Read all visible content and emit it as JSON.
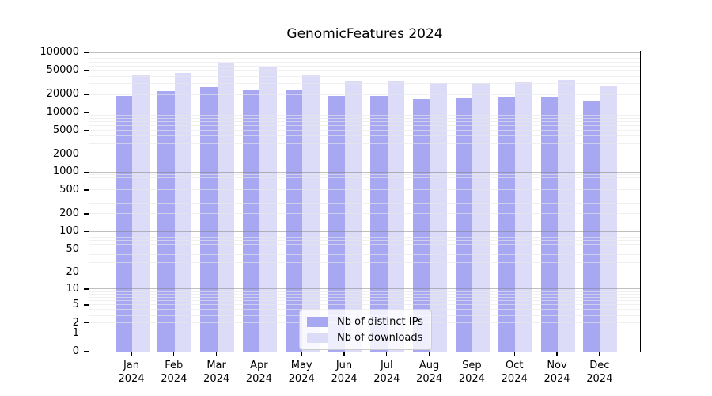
{
  "title": "GenomicFeatures 2024",
  "chart_data": {
    "type": "bar",
    "title": "GenomicFeatures 2024",
    "categories": [
      "Jan 2024",
      "Feb 2024",
      "Mar 2024",
      "Apr 2024",
      "May 2024",
      "Jun 2024",
      "Jul 2024",
      "Aug 2024",
      "Sep 2024",
      "Oct 2024",
      "Nov 2024",
      "Dec 2024"
    ],
    "series": [
      {
        "name": "Nb of distinct IPs",
        "color": "#a8a8f2",
        "values": [
          19000,
          23000,
          27000,
          24000,
          23500,
          19000,
          19000,
          17000,
          17500,
          18000,
          18000,
          16000
        ]
      },
      {
        "name": "Nb of downloads",
        "color": "#dcdcf8",
        "values": [
          42000,
          46000,
          67000,
          58000,
          43000,
          34000,
          34000,
          31000,
          31000,
          33000,
          35000,
          27500
        ]
      }
    ],
    "xlabel": "",
    "ylabel": "",
    "yscale": "log1p",
    "ylim": [
      0,
      100000
    ],
    "y_tick_values": [
      100000,
      50000,
      20000,
      10000,
      5000,
      2000,
      1000,
      500,
      200,
      100,
      50,
      20,
      10,
      5,
      2,
      1,
      0
    ],
    "y_tick_labels": [
      "100000",
      "50000",
      "20000",
      "10000",
      "5000",
      "2000",
      "1000",
      "500",
      "200",
      "100",
      "50",
      "20",
      "10",
      "5",
      "2",
      "1",
      "0"
    ],
    "grid": true,
    "major_gridline_values": [
      1,
      10,
      100,
      1000,
      10000,
      100000
    ],
    "legend_position": "bottom-center"
  }
}
